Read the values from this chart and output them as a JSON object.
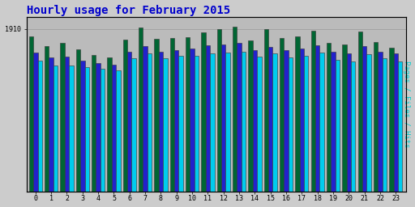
{
  "title": "Hourly usage for February 2015",
  "title_color": "#0000cc",
  "title_fontsize": 10,
  "ylabel_right": "Pages / Files / Hits",
  "ylabel_right_color": "#00cccc",
  "hours": [
    0,
    1,
    2,
    3,
    4,
    5,
    6,
    7,
    8,
    9,
    10,
    11,
    12,
    13,
    14,
    15,
    16,
    17,
    18,
    19,
    20,
    21,
    22,
    23
  ],
  "hits": [
    1820,
    1710,
    1740,
    1670,
    1600,
    1570,
    1780,
    1920,
    1790,
    1800,
    1810,
    1870,
    1910,
    1930,
    1770,
    1910,
    1800,
    1820,
    1890,
    1740,
    1730,
    1880,
    1750,
    1690
  ],
  "files": [
    1630,
    1570,
    1580,
    1540,
    1510,
    1490,
    1640,
    1710,
    1640,
    1660,
    1680,
    1720,
    1730,
    1740,
    1660,
    1700,
    1660,
    1680,
    1720,
    1640,
    1620,
    1710,
    1640,
    1620
  ],
  "pages": [
    1540,
    1480,
    1480,
    1460,
    1440,
    1420,
    1560,
    1620,
    1560,
    1590,
    1590,
    1620,
    1630,
    1640,
    1580,
    1620,
    1570,
    1590,
    1630,
    1550,
    1530,
    1610,
    1560,
    1530
  ],
  "hits_color": "#006633",
  "files_color": "#2222cc",
  "pages_color": "#00ccee",
  "bar_edge_color": "#333333",
  "bar_edge_width": 0.4,
  "bg_color": "#cccccc",
  "plot_bg_color": "#bbbbbb",
  "ylim_min": 0,
  "ylim_max": 2050,
  "ytick_label": "1910",
  "ytick_value": 1910,
  "bar_width": 0.28,
  "grid_color": "#999999",
  "grid_linewidth": 0.5
}
